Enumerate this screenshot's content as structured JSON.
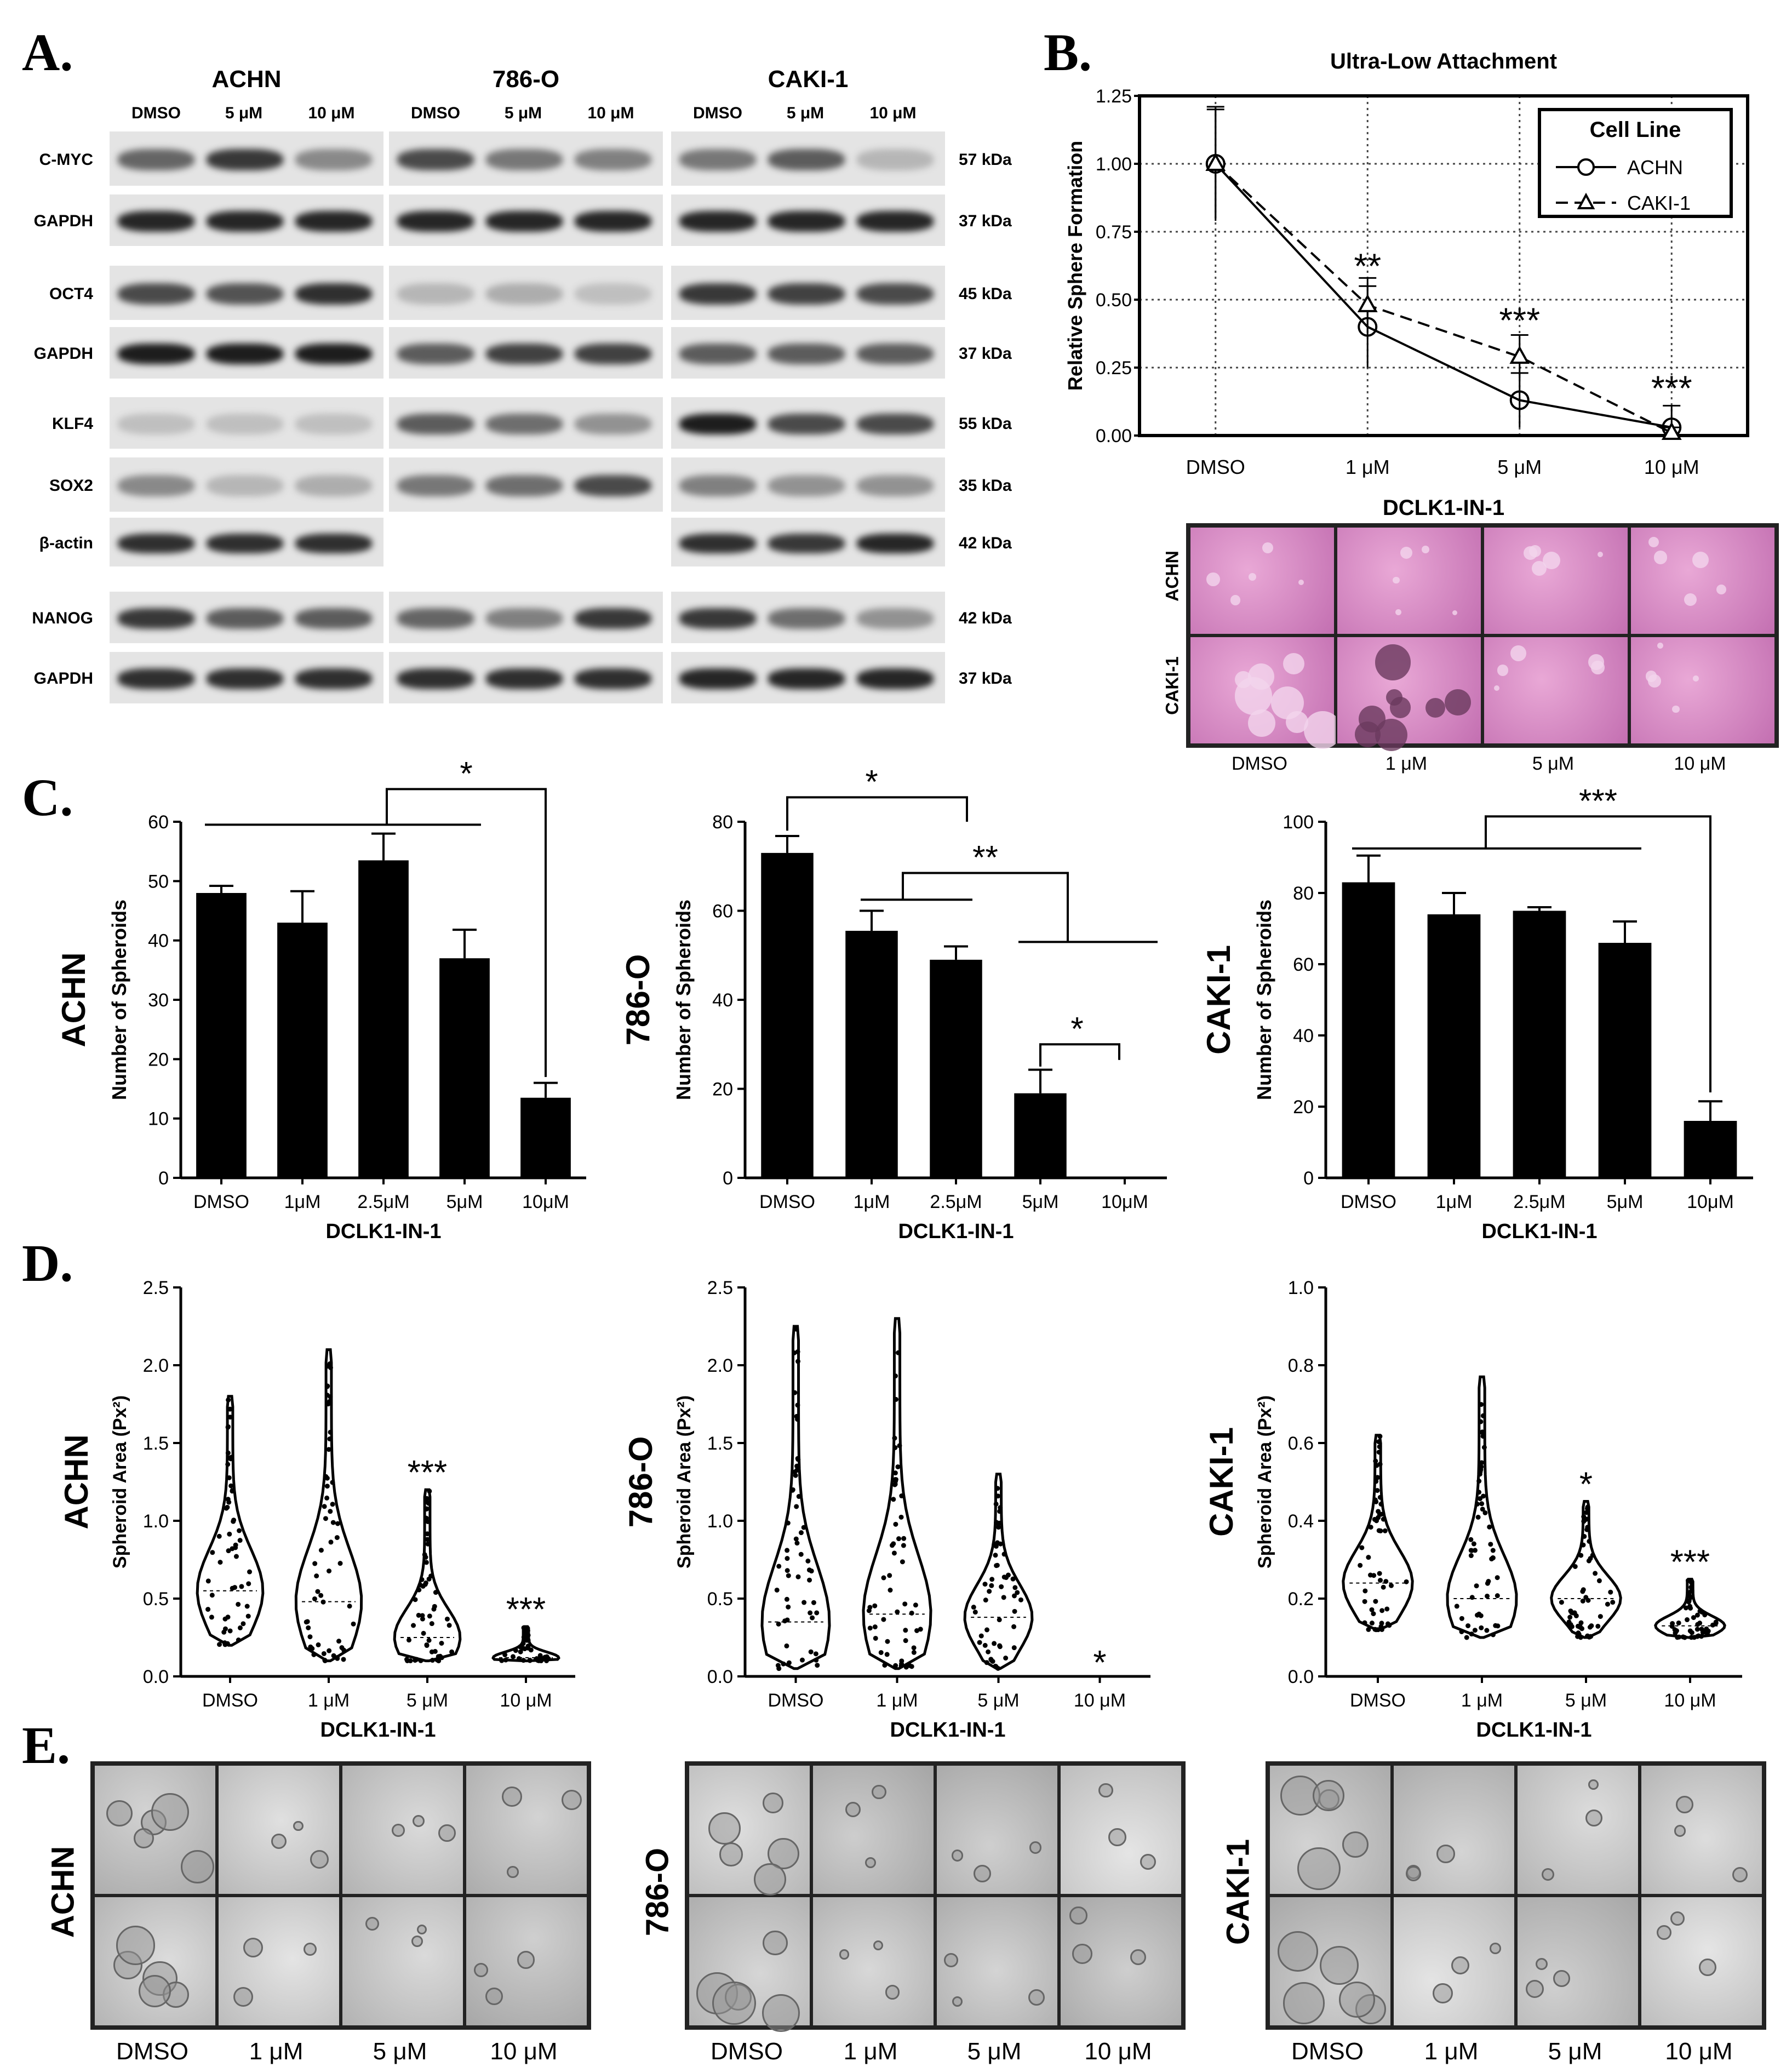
{
  "panels": {
    "A": "A.",
    "B": "B.",
    "C": "C.",
    "D": "D.",
    "E": "E."
  },
  "panelA": {
    "cell_lines": [
      "ACHN",
      "786-O",
      "CAKI-1"
    ],
    "lanes": [
      "DMSO",
      "5 μM",
      "10 μM"
    ],
    "rows": [
      {
        "protein": "C-MYC",
        "kda": "57 kDa"
      },
      {
        "protein": "GAPDH",
        "kda": "37 kDa"
      },
      {
        "protein": "OCT4",
        "kda": "45 kDa"
      },
      {
        "protein": "GAPDH",
        "kda": "37 kDa"
      },
      {
        "protein": "KLF4",
        "kda": "55 kDa"
      },
      {
        "protein": "SOX2",
        "kda": "35 kDa"
      },
      {
        "protein": "β-actin",
        "kda": "42 kDa"
      },
      {
        "protein": "NANOG",
        "kda": "42 kDa"
      },
      {
        "protein": "GAPDH",
        "kda": "37 kDa"
      }
    ]
  },
  "panelB": {
    "chart_data": {
      "type": "line",
      "title": "Ultra-Low Attachment",
      "xlabel": "DCLK1-IN-1",
      "ylabel": "Relative Sphere Formation",
      "categories": [
        "DMSO",
        "1 μM",
        "5 μM",
        "10 μM"
      ],
      "ylim": [
        0,
        1.25
      ],
      "yticks": [
        "0.00",
        "0.25",
        "0.50",
        "0.75",
        "1.00",
        "1.25"
      ],
      "legend_title": "Cell Line",
      "legend_position": "top-right",
      "grid": true,
      "series": [
        {
          "name": "ACHN",
          "values": [
            1.0,
            0.4,
            0.13,
            0.03
          ],
          "errors": [
            0.21,
            0.15,
            0.1,
            0.08
          ]
        },
        {
          "name": "CAKI-1",
          "values": [
            1.0,
            0.48,
            0.29,
            0.01
          ],
          "errors": [
            0.2,
            0.1,
            0.08,
            0.02
          ]
        }
      ],
      "annotations": [
        "**",
        "***",
        "***"
      ]
    },
    "image_rows": [
      "ACHN",
      "CAKI-1"
    ],
    "image_cols": [
      "DMSO",
      "1 μM",
      "5 μM",
      "10 μM"
    ]
  },
  "panelC": {
    "chart_data": [
      {
        "type": "bar",
        "cell_line": "ACHN",
        "ylabel": "Number of Spheroids",
        "xlabel": "DCLK1-IN-1",
        "categories": [
          "DMSO",
          "1μM",
          "2.5μM",
          "5μM",
          "10μM"
        ],
        "values": [
          48,
          43,
          53.5,
          37,
          13.5
        ],
        "errors": [
          1.2,
          5.3,
          4.5,
          4.8,
          2.5
        ],
        "ylim": [
          0,
          60
        ],
        "yticks": [
          "0",
          "10",
          "20",
          "30",
          "40",
          "50",
          "60"
        ],
        "annotations": [
          "*"
        ]
      },
      {
        "type": "bar",
        "cell_line": "786-O",
        "ylabel": "Number of Spheroids",
        "xlabel": "DCLK1-IN-1",
        "categories": [
          "DMSO",
          "1μM",
          "2.5μM",
          "5μM",
          "10μM"
        ],
        "values": [
          73,
          55.5,
          49,
          19,
          0
        ],
        "errors": [
          3.8,
          4.5,
          3,
          5.3,
          0
        ],
        "ylim": [
          0,
          80
        ],
        "yticks": [
          "0",
          "20",
          "40",
          "60",
          "80"
        ],
        "annotations": [
          "*",
          "**",
          "*"
        ]
      },
      {
        "type": "bar",
        "cell_line": "CAKI-1",
        "ylabel": "Number of Spheroids",
        "xlabel": "DCLK1-IN-1",
        "categories": [
          "DMSO",
          "1μM",
          "2.5μM",
          "5μM",
          "10μM"
        ],
        "values": [
          83,
          74,
          75,
          66,
          16
        ],
        "errors": [
          7.5,
          6,
          1,
          6,
          5.5
        ],
        "ylim": [
          0,
          100
        ],
        "yticks": [
          "0",
          "20",
          "40",
          "60",
          "80",
          "100"
        ],
        "annotations": [
          "***"
        ]
      }
    ]
  },
  "panelD": {
    "chart_data": [
      {
        "type": "scatter",
        "cell_line": "ACHN",
        "ylabel": "Spheroid Area (Px²)",
        "xlabel": "DCLK1-IN-1",
        "categories": [
          "DMSO",
          "1 μM",
          "5 μM",
          "10 μM"
        ],
        "ranges": [
          [
            0.2,
            1.8
          ],
          [
            0.1,
            2.1
          ],
          [
            0.1,
            1.2
          ],
          [
            0.1,
            0.32
          ]
        ],
        "medians": [
          0.55,
          0.48,
          0.25,
          0.12
        ],
        "ylim": [
          0,
          2.5
        ],
        "yticks": [
          "0.0",
          "0.5",
          "1.0",
          "1.5",
          "2.0",
          "2.5"
        ],
        "annotations": [
          "",
          "",
          "***",
          "***"
        ]
      },
      {
        "type": "scatter",
        "cell_line": "786-O",
        "ylabel": "Spheroid Area (Px²)",
        "xlabel": "DCLK1-IN-1",
        "categories": [
          "DMSO",
          "1 μM",
          "5 μM",
          "10 μM"
        ],
        "ranges": [
          [
            0.05,
            2.25
          ],
          [
            0.05,
            2.3
          ],
          [
            0.05,
            1.3
          ],
          [
            0,
            0
          ]
        ],
        "medians": [
          0.35,
          0.4,
          0.38,
          0
        ],
        "ylim": [
          0,
          2.5
        ],
        "yticks": [
          "0.0",
          "0.5",
          "1.0",
          "1.5",
          "2.0",
          "2.5"
        ],
        "annotations": [
          "",
          "",
          "",
          "*"
        ]
      },
      {
        "type": "scatter",
        "cell_line": "CAKI-1",
        "ylabel": "Spheroid Area (Px²)",
        "xlabel": "DCLK1-IN-1",
        "categories": [
          "DMSO",
          "1 μM",
          "5 μM",
          "10 μM"
        ],
        "ranges": [
          [
            0.12,
            0.62
          ],
          [
            0.1,
            0.77
          ],
          [
            0.1,
            0.45
          ],
          [
            0.1,
            0.25
          ]
        ],
        "medians": [
          0.24,
          0.2,
          0.2,
          0.13
        ],
        "ylim": [
          0,
          1.0
        ],
        "yticks": [
          "0.0",
          "0.2",
          "0.4",
          "0.6",
          "0.8",
          "1.0"
        ],
        "annotations": [
          "",
          "",
          "*",
          "***"
        ]
      }
    ]
  },
  "panelE": {
    "groups": [
      {
        "cell_line": "ACHN"
      },
      {
        "cell_line": "786-O"
      },
      {
        "cell_line": "CAKI-1"
      }
    ],
    "cols": [
      "DMSO",
      "1 μM",
      "5 μM",
      "10 μM"
    ]
  }
}
